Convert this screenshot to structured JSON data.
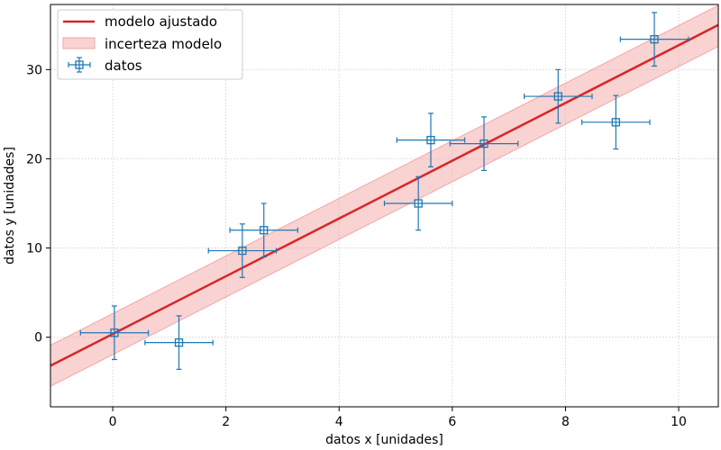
{
  "chart_data": {
    "type": "scatter",
    "title": "",
    "xlabel": "datos x [unidades]",
    "ylabel": "datos y [unidades]",
    "xlim": [
      -1.1,
      10.7
    ],
    "ylim": [
      -7.8,
      37.3
    ],
    "xticks": [
      0,
      2,
      4,
      6,
      8,
      10
    ],
    "yticks": [
      0,
      10,
      20,
      30
    ],
    "grid": true,
    "legend_position": "top-left",
    "colors": {
      "model": "#d62728",
      "band": "#f4a6a6",
      "data": "#1f77b4"
    },
    "series": [
      {
        "name": "modelo ajustado",
        "kind": "line",
        "x": [
          -1.1,
          10.7
        ],
        "y": [
          -3.2,
          35.0
        ]
      },
      {
        "name": "incerteza modelo",
        "kind": "band",
        "x": [
          -1.1,
          10.7
        ],
        "y_low": [
          -5.5,
          32.6
        ],
        "y_high": [
          -0.9,
          37.2
        ]
      },
      {
        "name": "datos",
        "kind": "errorbar",
        "x": [
          0.03,
          1.17,
          2.29,
          2.67,
          5.4,
          5.62,
          6.56,
          7.87,
          8.89,
          9.57
        ],
        "y": [
          0.5,
          -0.6,
          9.7,
          12.0,
          15.0,
          22.1,
          21.7,
          27.0,
          24.1,
          33.4
        ],
        "xerr": [
          0.6,
          0.6,
          0.6,
          0.6,
          0.6,
          0.6,
          0.6,
          0.6,
          0.6,
          0.6
        ],
        "yerr": [
          3.0,
          3.0,
          3.0,
          3.0,
          3.0,
          3.0,
          3.0,
          3.0,
          3.0,
          3.0
        ]
      }
    ]
  }
}
